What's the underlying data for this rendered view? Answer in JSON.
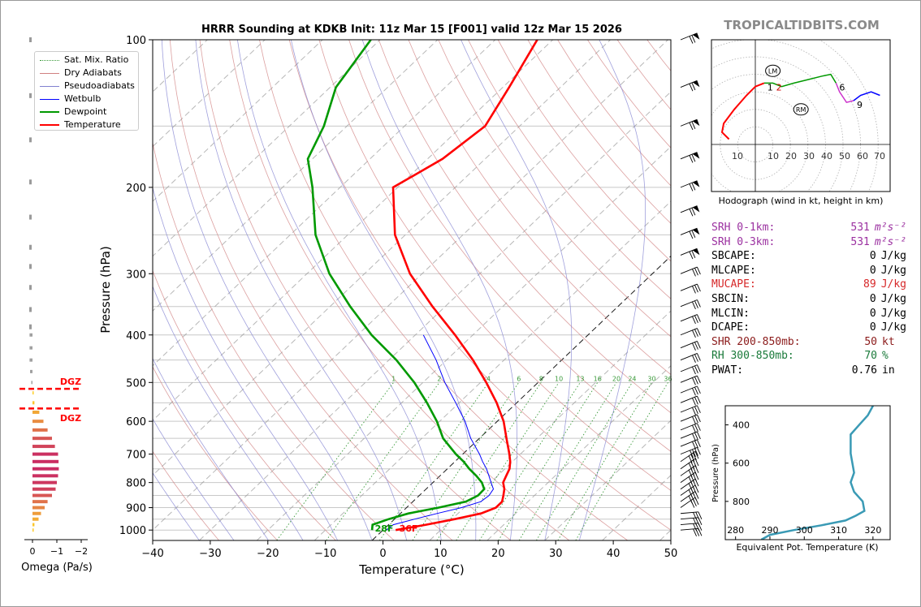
{
  "watermark": "TROPICALTIDBITS.COM",
  "skewt": {
    "title": "HRRR Sounding at KDKB Init: 11z Mar 15 [F001] valid 12z Mar 15 2026",
    "xlabel": "Temperature (°C)",
    "ylabel": "Pressure (hPa)",
    "xticks": [
      "−40",
      "−30",
      "−20",
      "−10",
      "0",
      "10",
      "20",
      "30",
      "40",
      "50"
    ],
    "yticks": [
      "100",
      "200",
      "300",
      "400",
      "500",
      "600",
      "700",
      "800",
      "900",
      "1000"
    ],
    "mixing_ratio_labels": [
      "1",
      "2",
      "4",
      "6",
      "8",
      "10",
      "13",
      "16",
      "20",
      "24",
      "30",
      "36"
    ],
    "legend": {
      "sat_mix": "Sat. Mix. Ratio",
      "dry": "Dry Adiabats",
      "pseudo": "Pseudoadiabats",
      "wetbulb": "Wetbulb",
      "dewpoint": "Dewpoint",
      "temperature": "Temperature"
    },
    "surface_dewpoint_label": "28F",
    "surface_temp_label": "36F"
  },
  "omega": {
    "xlabel": "Omega (Pa/s)",
    "xticks": [
      "0",
      "−1",
      "−2"
    ],
    "dgz_label_top": "DGZ",
    "dgz_label_bottom": "DGZ"
  },
  "hodograph": {
    "caption": "Hodograph (wind in kt, height in km)",
    "ring_labels": [
      "10",
      "10",
      "20",
      "30",
      "40",
      "50",
      "60",
      "70"
    ],
    "lm_label": "LM",
    "rm_label": "RM",
    "height_labels": [
      "1",
      "2",
      "6",
      "9"
    ]
  },
  "theta_e": {
    "xlabel": "Equivalent Pot. Temperature (K)",
    "ylabel": "Pressure (hPa)",
    "xticks": [
      "280",
      "290",
      "300",
      "310",
      "320"
    ],
    "yticks": [
      "400",
      "600",
      "800"
    ]
  },
  "params": [
    {
      "label": "SRH 0-1km:",
      "value": "531",
      "unit": "m²s⁻²",
      "color": "#9b30a0"
    },
    {
      "label": "SRH 0-3km:",
      "value": "531",
      "unit": "m²s⁻²",
      "color": "#9b30a0"
    },
    {
      "label": "SBCAPE:",
      "value": "0",
      "unit": "J/kg",
      "color": "#000000"
    },
    {
      "label": "MLCAPE:",
      "value": "0",
      "unit": "J/kg",
      "color": "#000000"
    },
    {
      "label": "MUCAPE:",
      "value": "89",
      "unit": "J/kg",
      "color": "#d62728"
    },
    {
      "label": "SBCIN:",
      "value": "0",
      "unit": "J/kg",
      "color": "#000000"
    },
    {
      "label": "MLCIN:",
      "value": "0",
      "unit": "J/kg",
      "color": "#000000"
    },
    {
      "label": "DCAPE:",
      "value": "0",
      "unit": "J/kg",
      "color": "#000000"
    },
    {
      "label": "SHR 200-850mb:",
      "value": "50",
      "unit": "kt",
      "color": "#8b1a1a"
    },
    {
      "label": "RH 300-850mb:",
      "value": "70",
      "unit": "%",
      "color": "#1a7a3a"
    },
    {
      "label": "PWAT:",
      "value": "0.76",
      "unit": "in",
      "color": "#000000"
    }
  ],
  "colors": {
    "temperature": "#ff0000",
    "dewpoint": "#009900",
    "wetbulb": "#0000ff",
    "dry_adiabat": "#d08080",
    "pseudo": "#8080d0",
    "mix": "#3a9a3a",
    "theta_e": "#3a9ab5",
    "dgz": "#ff0000"
  },
  "chart_data": [
    {
      "type": "line",
      "name": "skew-t",
      "xlim": [
        -40,
        50
      ],
      "ylim_hPa": [
        1050,
        100
      ],
      "skew_note": "x axis is temperature at 1000 hPa reference",
      "series": [
        {
          "name": "Temperature",
          "p": [
            1000,
            975,
            950,
            925,
            900,
            875,
            850,
            825,
            800,
            775,
            750,
            725,
            700,
            650,
            600,
            550,
            500,
            450,
            400,
            350,
            300,
            250,
            200,
            175,
            150,
            125,
            100
          ],
          "t": [
            2.2,
            6.5,
            10.5,
            14.0,
            15.5,
            15.5,
            14.6,
            13.6,
            12.2,
            11.5,
            10.8,
            9.6,
            8.1,
            4.7,
            1.1,
            -3.5,
            -9.0,
            -15.4,
            -23.1,
            -32.2,
            -42.1,
            -51.8,
            -60.8,
            -57.4,
            -56.0,
            -58.9,
            -62.7
          ]
        },
        {
          "name": "Dewpoint",
          "p": [
            1000,
            975,
            950,
            925,
            900,
            875,
            850,
            825,
            800,
            775,
            750,
            725,
            700,
            650,
            600,
            550,
            500,
            450,
            400,
            350,
            300,
            250,
            200,
            175,
            150,
            125,
            100
          ],
          "td": [
            -1.9,
            -2.8,
            -1.0,
            1.4,
            5.5,
            9.2,
            10.2,
            10.1,
            8.5,
            6.3,
            3.8,
            1.5,
            -1.2,
            -6.3,
            -10.5,
            -15.6,
            -21.5,
            -28.7,
            -37.6,
            -46.5,
            -56.1,
            -65.6,
            -74.8,
            -80.8,
            -84.0,
            -89.0,
            -91.6
          ]
        },
        {
          "name": "Wetbulb",
          "p": [
            1000,
            975,
            950,
            925,
            900,
            875,
            850,
            825,
            800,
            775,
            750,
            725,
            700,
            650,
            600,
            550,
            500,
            450,
            400
          ],
          "tw": [
            0.6,
            0.8,
            3.5,
            6.4,
            9.5,
            11.8,
            12.1,
            11.7,
            10.1,
            8.5,
            6.8,
            4.8,
            2.9,
            -1.5,
            -5.6,
            -10.6,
            -16.2,
            -21.8,
            -28.6
          ]
        }
      ]
    },
    {
      "type": "bar",
      "name": "omega-profile",
      "xlim": [
        0.2,
        -2
      ],
      "units": "Pa/s",
      "p": [
        1000,
        975,
        950,
        925,
        900,
        875,
        850,
        825,
        800,
        775,
        750,
        725,
        700,
        675,
        650,
        625,
        600,
        575,
        550,
        525,
        500,
        475,
        450,
        425,
        400
      ],
      "values": [
        -0.05,
        -0.08,
        -0.25,
        -0.35,
        -0.5,
        -0.62,
        -0.8,
        -0.95,
        -1.0,
        -1.05,
        -1.08,
        -1.07,
        -1.05,
        -0.92,
        -0.8,
        -0.62,
        -0.45,
        -0.28,
        -0.08,
        -0.02,
        0.05,
        0.1,
        0.12,
        0.12,
        0.12
      ],
      "dgz_pressures_hPa": [
        515,
        565
      ]
    },
    {
      "type": "line",
      "name": "hodograph",
      "units": "kt",
      "rings_kt": [
        10,
        20,
        30,
        40,
        50,
        60,
        70
      ],
      "u": [
        -15,
        -19,
        -18,
        -12,
        -5,
        0,
        5,
        10,
        15,
        22,
        30,
        38,
        43,
        46,
        48,
        52,
        56,
        60,
        66,
        71
      ],
      "v": [
        3,
        7,
        12,
        20,
        28,
        33,
        35,
        35,
        33,
        35,
        37,
        39,
        40,
        35,
        30,
        24,
        25,
        28,
        30,
        28
      ],
      "heights_km": [
        "0",
        "",
        "",
        "",
        "",
        "",
        "1",
        "2",
        "",
        "",
        "",
        "",
        "",
        "6",
        "",
        "",
        "9",
        "",
        "",
        ""
      ],
      "lm": [
        10,
        42
      ],
      "rm": [
        26,
        20
      ]
    },
    {
      "type": "line",
      "name": "theta-e-profile",
      "xlim": [
        277,
        325
      ],
      "ylim_hPa": [
        1000,
        300
      ],
      "p": [
        1000,
        975,
        950,
        925,
        900,
        875,
        850,
        800,
        750,
        700,
        650,
        600,
        550,
        500,
        450,
        400,
        350,
        300
      ],
      "theta_e": [
        287.5,
        290,
        297,
        305,
        312,
        315,
        317.5,
        317,
        314.5,
        313.5,
        314.5,
        314,
        313.5,
        313.5,
        313.5,
        316,
        318.5,
        320
      ]
    }
  ]
}
